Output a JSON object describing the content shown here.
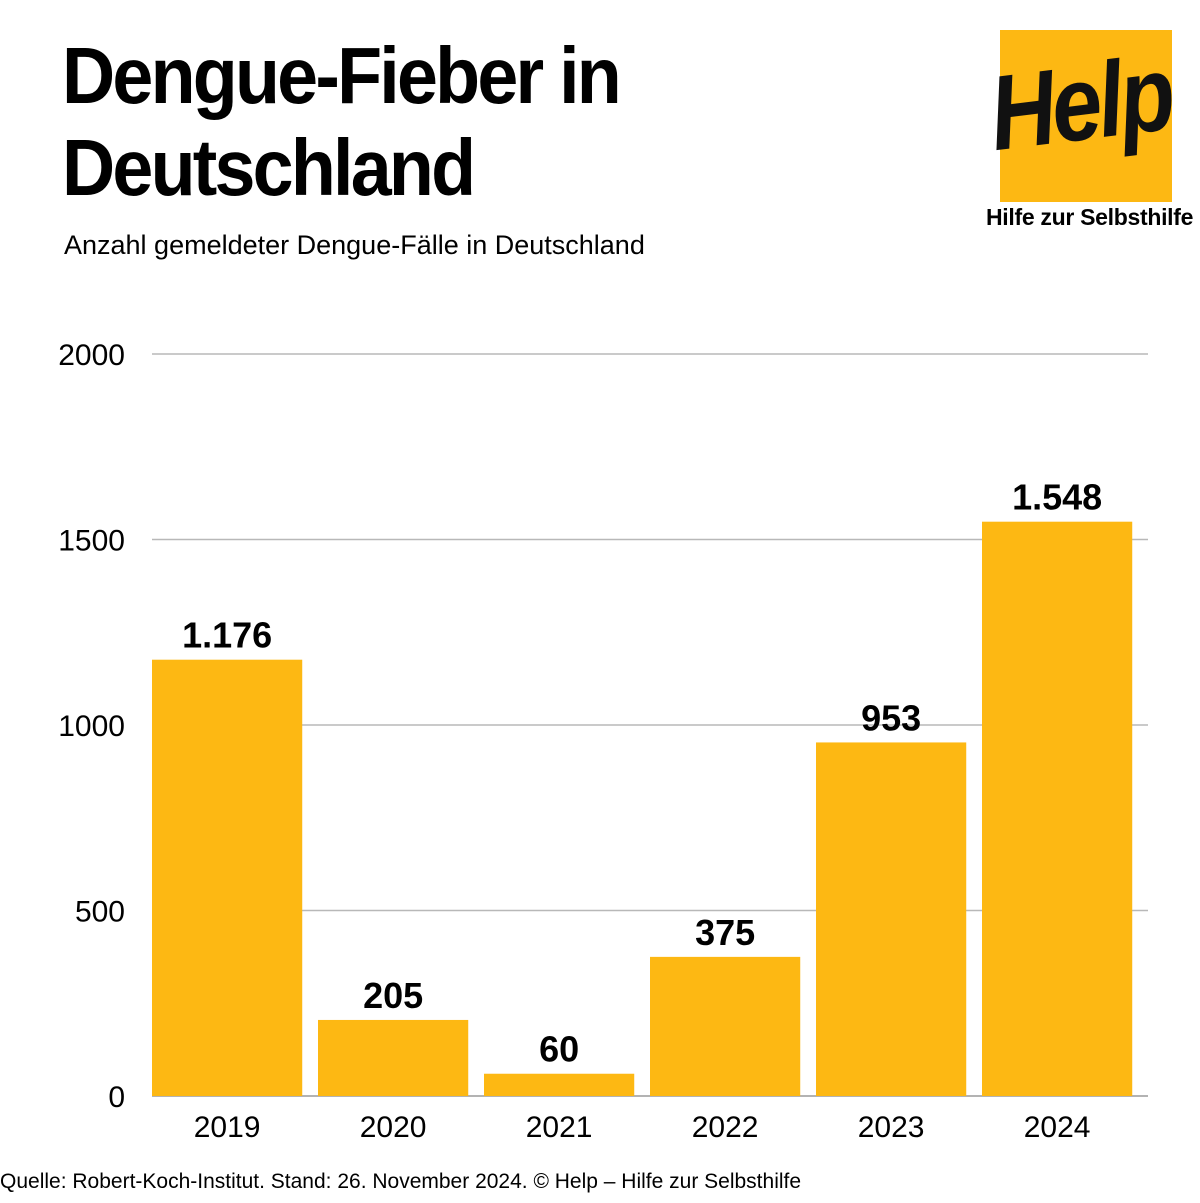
{
  "header": {
    "title_line1": "Dengue-Fieber in",
    "title_line2": "Deutschland",
    "subtitle": "Anzahl gemeldeter Dengue-Fälle in Deutschland"
  },
  "logo": {
    "word": "Help",
    "tagline": "Hilfe zur Selbsthilfe",
    "color": "#fdb813"
  },
  "chart_data": {
    "type": "bar",
    "categories": [
      "2019",
      "2020",
      "2021",
      "2022",
      "2023",
      "2024"
    ],
    "values": [
      1176,
      205,
      60,
      375,
      953,
      1548
    ],
    "value_labels": [
      "1.176",
      "205",
      "60",
      "375",
      "953",
      "1.548"
    ],
    "yticks": [
      "0",
      "500",
      "1000",
      "1500",
      "2000"
    ],
    "ylim": [
      0,
      2000
    ],
    "grid": true,
    "bar_color": "#fdb813",
    "title": "",
    "xlabel": "",
    "ylabel": ""
  },
  "footer": {
    "source": "Quelle: Robert-Koch-Institut. Stand: 26. November 2024.  © Help – Hilfe zur Selbsthilfe"
  }
}
